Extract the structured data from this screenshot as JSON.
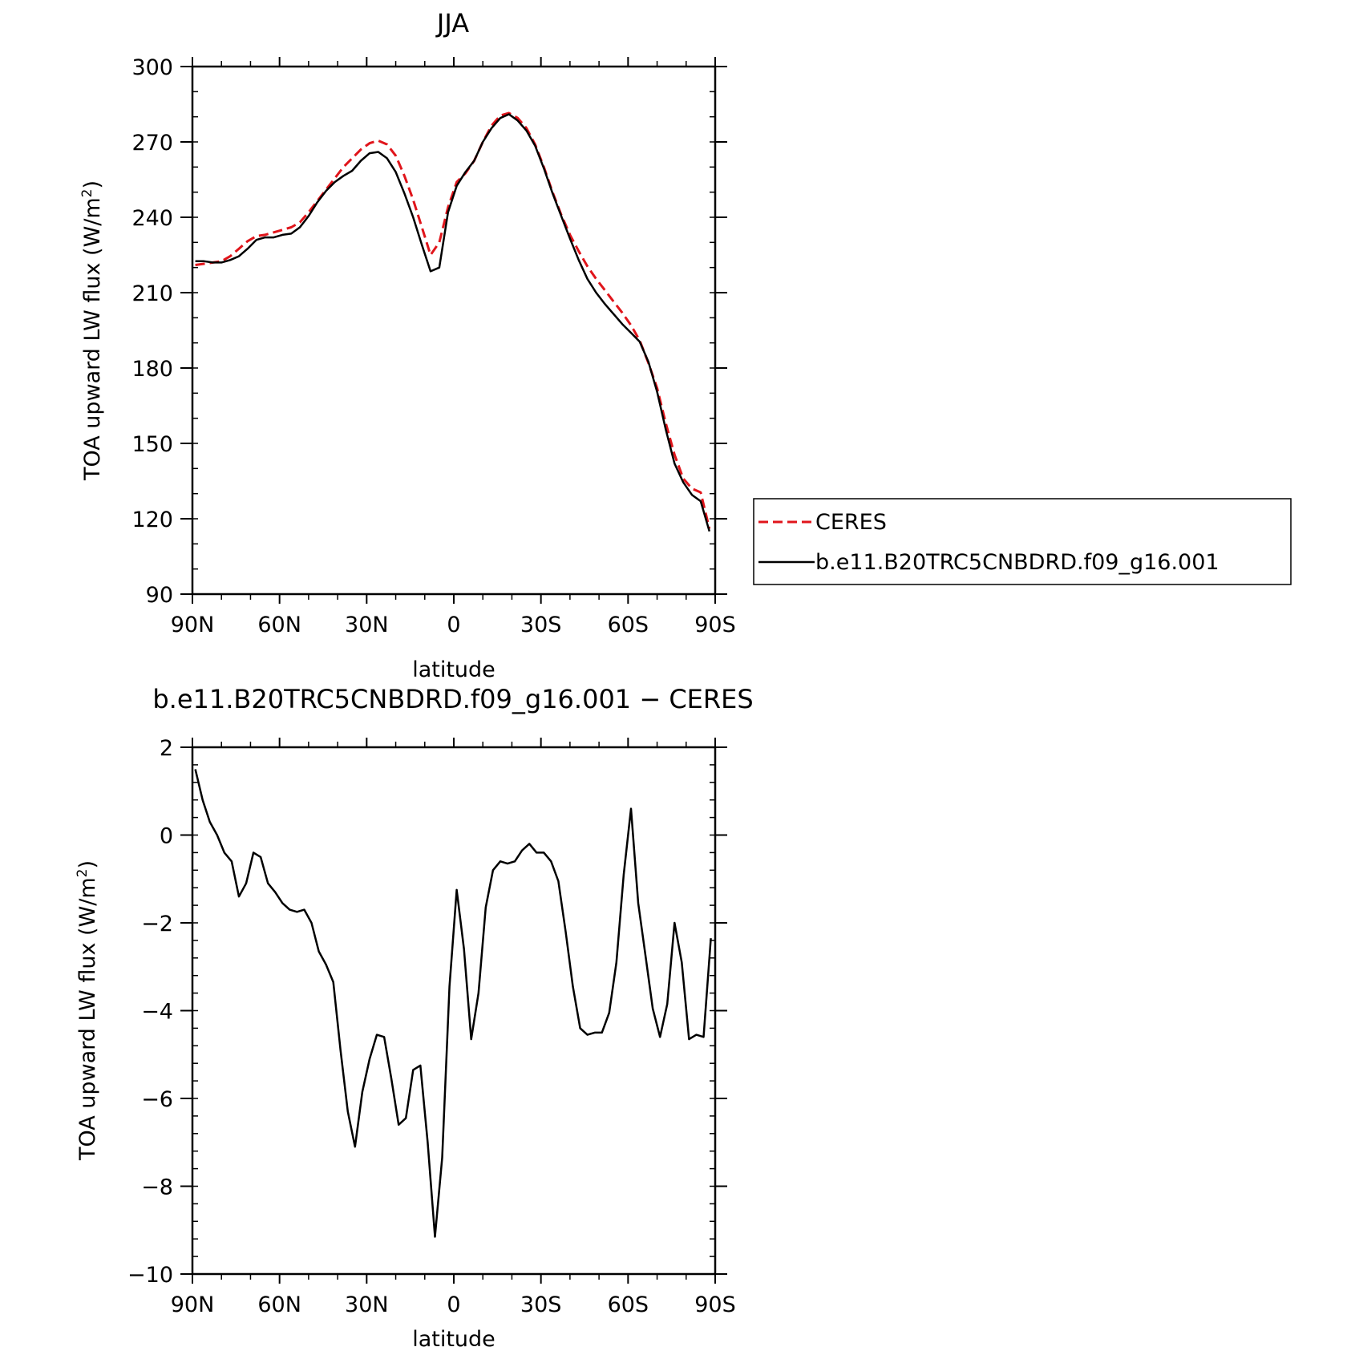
{
  "chart_data": [
    {
      "type": "line",
      "title": "JJA",
      "xlabel": "latitude",
      "ylabel": "TOA upward LW flux (W/m²)",
      "ylabel_main": "TOA upward LW flux (W/m",
      "ylabel_sup": "2",
      "ylabel_end": ")",
      "xlim": [
        90,
        -90
      ],
      "ylim": [
        90,
        300
      ],
      "xticks": [
        {
          "value": 90,
          "label": "90N"
        },
        {
          "value": 60,
          "label": "60N"
        },
        {
          "value": 30,
          "label": "30N"
        },
        {
          "value": 0,
          "label": "0"
        },
        {
          "value": -30,
          "label": "30S"
        },
        {
          "value": -60,
          "label": "60S"
        },
        {
          "value": -90,
          "label": "90S"
        }
      ],
      "yticks": [
        {
          "value": 90,
          "label": "90"
        },
        {
          "value": 120,
          "label": "120"
        },
        {
          "value": 150,
          "label": "150"
        },
        {
          "value": 180,
          "label": "180"
        },
        {
          "value": 210,
          "label": "210"
        },
        {
          "value": 240,
          "label": "240"
        },
        {
          "value": 270,
          "label": "270"
        },
        {
          "value": 300,
          "label": "300"
        }
      ],
      "legend": "right",
      "x": [
        89,
        86,
        83,
        80,
        77,
        74,
        71,
        68,
        65,
        62,
        59,
        56,
        53,
        50,
        47,
        44,
        41,
        38,
        35,
        32,
        29,
        26,
        23,
        20,
        17,
        14,
        11,
        8,
        5,
        2,
        -1,
        -4,
        -7,
        -10,
        -13,
        -16,
        -19,
        -22,
        -25,
        -28,
        -31,
        -34,
        -37,
        -40,
        -43,
        -46,
        -49,
        -52,
        -55,
        -58,
        -61,
        -64,
        -67,
        -70,
        -73,
        -76,
        -79,
        -82,
        -85,
        -88
      ],
      "series": [
        {
          "name": "CERES",
          "color": "#e0151b",
          "dash": "dashed",
          "values": [
            221,
            221.5,
            222,
            222.5,
            224.5,
            227.5,
            230.5,
            232.5,
            233,
            234,
            235,
            236,
            238,
            242,
            246.5,
            251,
            255.5,
            260,
            263.5,
            267,
            269.5,
            270.5,
            269,
            264.5,
            256.5,
            247,
            236,
            225,
            230,
            244,
            254,
            257.5,
            262.5,
            270,
            276.5,
            280.5,
            281.5,
            279.5,
            275.5,
            269,
            260,
            250,
            241,
            233,
            226.5,
            220.5,
            215.5,
            211,
            206.5,
            202,
            197,
            191,
            182,
            172,
            158,
            145.5,
            136,
            132,
            130.5,
            116
          ]
        },
        {
          "name": "b.e11.B20TRC5CNBDRD.f09_g16.001",
          "color": "#000000",
          "dash": "solid",
          "values": [
            222.5,
            222.5,
            222,
            222,
            223,
            224.5,
            227.5,
            231,
            232,
            232,
            233,
            233.5,
            236,
            240.5,
            246,
            250.5,
            254,
            256.5,
            258.5,
            262.5,
            265.5,
            266,
            263.5,
            258,
            249.5,
            240,
            229,
            218.5,
            220,
            242,
            252.5,
            258,
            262.5,
            270,
            275.5,
            279.5,
            281,
            278.5,
            274.5,
            268.5,
            259.5,
            249.5,
            240.5,
            231.5,
            223,
            215.5,
            210,
            205.5,
            201.5,
            197.5,
            194,
            190.5,
            182.5,
            170.5,
            155.5,
            142,
            134.5,
            129.5,
            127,
            115
          ]
        }
      ]
    },
    {
      "type": "line",
      "title": "b.e11.B20TRC5CNBDRD.f09_g16.001 − CERES",
      "xlabel": "latitude",
      "ylabel": "TOA upward LW flux (W/m²)",
      "ylabel_main": "TOA upward LW flux (W/m",
      "ylabel_sup": "2",
      "ylabel_end": ")",
      "xlim": [
        90,
        -90
      ],
      "ylim": [
        -10,
        2
      ],
      "xticks": [
        {
          "value": 90,
          "label": "90N"
        },
        {
          "value": 60,
          "label": "60N"
        },
        {
          "value": 30,
          "label": "30N"
        },
        {
          "value": 0,
          "label": "0"
        },
        {
          "value": -30,
          "label": "30S"
        },
        {
          "value": -60,
          "label": "60S"
        },
        {
          "value": -90,
          "label": "90S"
        }
      ],
      "yticks": [
        {
          "value": -10,
          "label": "−10"
        },
        {
          "value": -8,
          "label": "−8"
        },
        {
          "value": -6,
          "label": "−6"
        },
        {
          "value": -4,
          "label": "−4"
        },
        {
          "value": -2,
          "label": "−2"
        },
        {
          "value": 0,
          "label": "0"
        },
        {
          "value": 2,
          "label": "2"
        }
      ],
      "series": [
        {
          "color": "#000000",
          "x": [
            89,
            86.5,
            84,
            81.5,
            79,
            76.5,
            74,
            71.5,
            69,
            66.5,
            64,
            61.5,
            59,
            56.5,
            54,
            51.5,
            49,
            46.5,
            44,
            41.5,
            39,
            36.5,
            34,
            31.5,
            29,
            26.5,
            24,
            21.5,
            19,
            16.5,
            14,
            11.5,
            9,
            6.5,
            4,
            1.5,
            -1,
            -3.5,
            -6,
            -8.5,
            -11,
            -13.5,
            -16,
            -18.5,
            -21,
            -23.5,
            -26,
            -28.5,
            -31,
            -33.5,
            -36,
            -38.5,
            -41,
            -43.5,
            -46,
            -48.5,
            -51,
            -53.5,
            -56,
            -58.5,
            -61,
            -63.5,
            -66,
            -68.5,
            -71,
            -73.5,
            -76,
            -78.5,
            -81,
            -83.5,
            -86,
            -88.5
          ],
          "values": [
            1.5,
            0.8,
            0.3,
            0.0,
            -0.4,
            -0.6,
            -1.4,
            -1.1,
            -0.4,
            -0.5,
            -1.1,
            -1.3,
            -1.55,
            -1.7,
            -1.75,
            -1.7,
            -2.0,
            -2.65,
            -2.95,
            -3.35,
            -4.9,
            -6.3,
            -7.1,
            -5.85,
            -5.1,
            -4.55,
            -4.6,
            -5.55,
            -6.6,
            -6.45,
            -5.35,
            -5.25,
            -7.0,
            -9.15,
            -7.35,
            -3.45,
            -1.25,
            -2.6,
            -4.65,
            -3.6,
            -1.65,
            -0.8,
            -0.6,
            -0.65,
            -0.6,
            -0.35,
            -0.2,
            -0.4,
            -0.4,
            -0.6,
            -1.05,
            -2.2,
            -3.45,
            -4.4,
            -4.55,
            -4.5,
            -4.5,
            -4.05,
            -2.9,
            -0.9,
            0.6,
            -1.55,
            -2.75,
            -3.95,
            -4.6,
            -3.85,
            -2.0,
            -2.9,
            -4.65,
            -4.55,
            -4.6,
            -2.35
          ]
        }
      ]
    }
  ]
}
